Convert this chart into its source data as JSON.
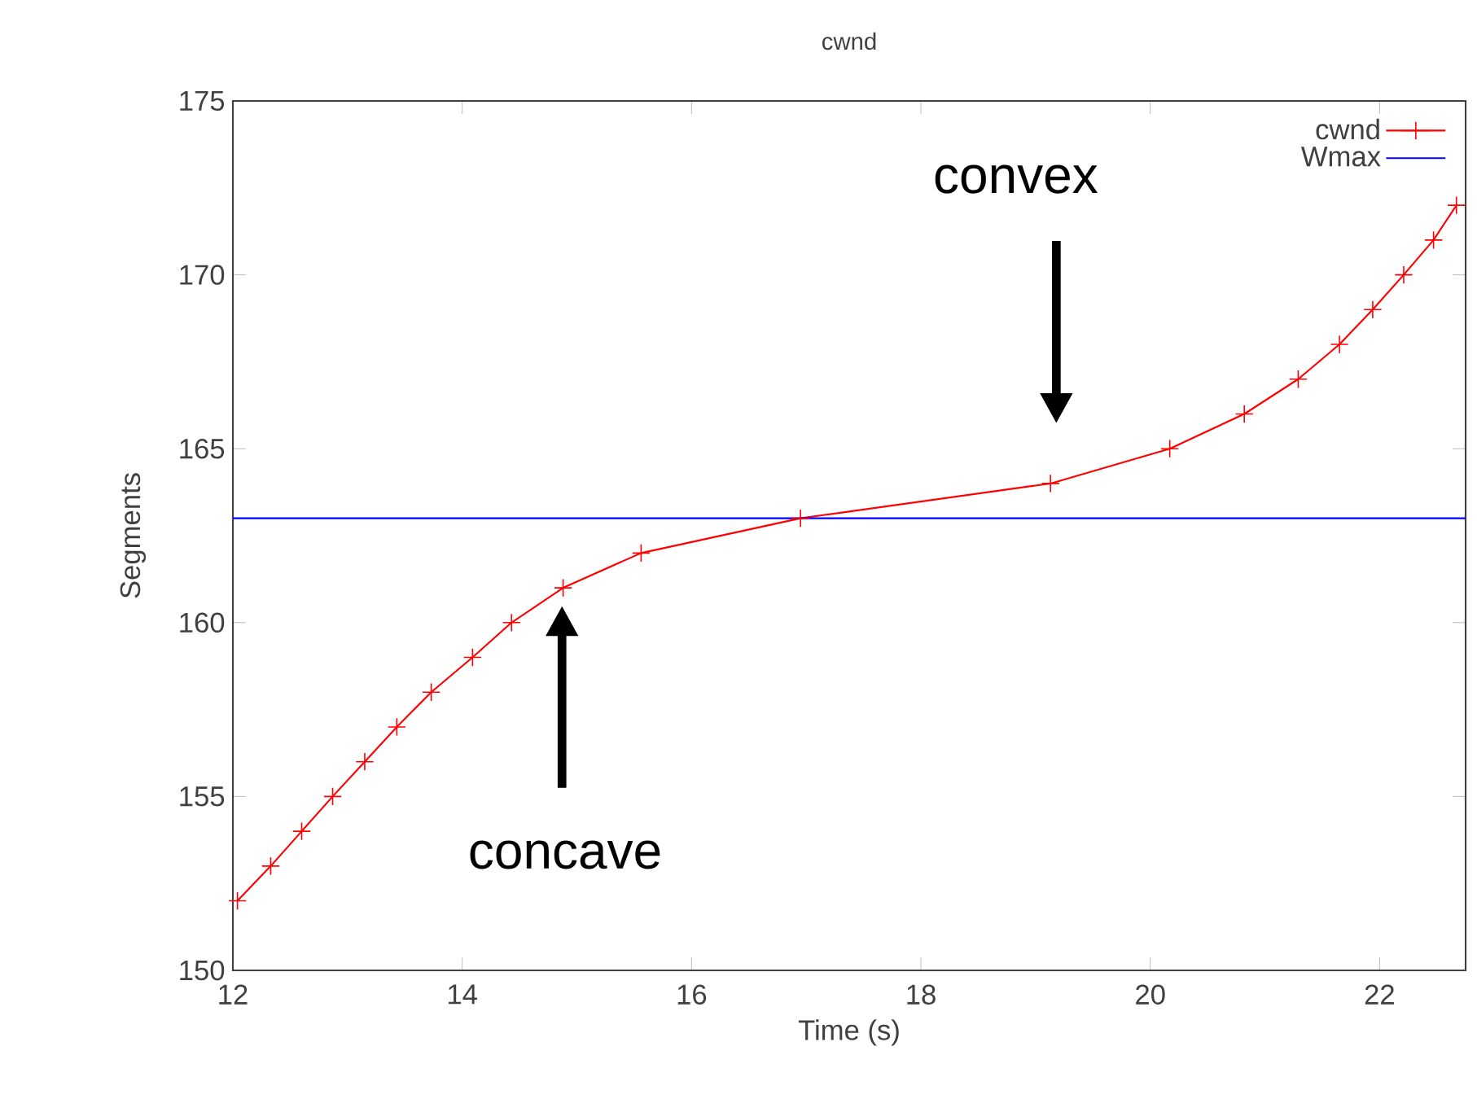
{
  "chart_data": {
    "type": "line",
    "title": "cwnd",
    "xlabel": "Time (s)",
    "ylabel": "Segments",
    "xlim": [
      12,
      22.75
    ],
    "ylim": [
      150,
      175
    ],
    "xticks": [
      12,
      14,
      16,
      18,
      20,
      22
    ],
    "yticks": [
      150,
      155,
      160,
      165,
      170,
      175
    ],
    "grid": false,
    "legend": "top right",
    "line_style": "solid",
    "series": [
      {
        "name": "cwnd",
        "color": "#ff0000",
        "marker": "cross",
        "x": [
          12.04,
          12.33,
          12.6,
          12.87,
          13.15,
          13.43,
          13.73,
          14.09,
          14.43,
          14.88,
          15.56,
          16.95,
          19.13,
          20.17,
          20.82,
          21.29,
          21.65,
          21.94,
          22.21,
          22.47,
          22.67
        ],
        "values": [
          152,
          153,
          154,
          155,
          156,
          157,
          158,
          159,
          160,
          161,
          162,
          163,
          164,
          165,
          166,
          167,
          168,
          169,
          170,
          171,
          172
        ]
      },
      {
        "name": "Wmax",
        "color": "#0000ff",
        "marker": "none",
        "x": [
          12,
          22.75
        ],
        "values": [
          163,
          163
        ]
      }
    ],
    "annotations": [
      "concave",
      "convex"
    ]
  }
}
